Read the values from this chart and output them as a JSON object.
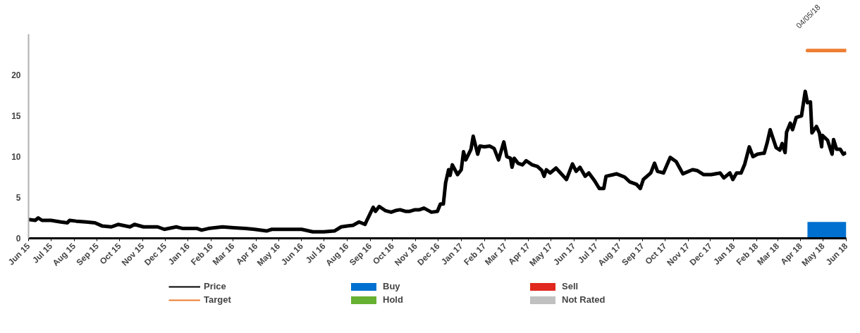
{
  "chart_data": {
    "type": "line",
    "xlim": [
      "2015-06-01",
      "2018-06-01"
    ],
    "xticks": [
      {
        "value": "2015-06-01",
        "label": "Jun 15"
      },
      {
        "value": "2015-07-01",
        "label": "Jul 15"
      },
      {
        "value": "2015-08-01",
        "label": "Aug 15"
      },
      {
        "value": "2015-09-01",
        "label": "Sep 15"
      },
      {
        "value": "2015-10-01",
        "label": "Oct 15"
      },
      {
        "value": "2015-11-01",
        "label": "Nov 15"
      },
      {
        "value": "2015-12-01",
        "label": "Dec 15"
      },
      {
        "value": "2016-01-01",
        "label": "Jan 16"
      },
      {
        "value": "2016-02-01",
        "label": "Feb 16"
      },
      {
        "value": "2016-03-01",
        "label": "Mar 16"
      },
      {
        "value": "2016-04-01",
        "label": "Apr 16"
      },
      {
        "value": "2016-05-01",
        "label": "May 16"
      },
      {
        "value": "2016-06-01",
        "label": "Jun 16"
      },
      {
        "value": "2016-07-01",
        "label": "Jul 16"
      },
      {
        "value": "2016-08-01",
        "label": "Aug 16"
      },
      {
        "value": "2016-09-01",
        "label": "Sep 16"
      },
      {
        "value": "2016-10-01",
        "label": "Oct 16"
      },
      {
        "value": "2016-11-01",
        "label": "Nov 16"
      },
      {
        "value": "2016-12-01",
        "label": "Dec 16"
      },
      {
        "value": "2017-01-01",
        "label": "Jan 17"
      },
      {
        "value": "2017-02-01",
        "label": "Feb 17"
      },
      {
        "value": "2017-03-01",
        "label": "Mar 17"
      },
      {
        "value": "2017-04-01",
        "label": "Apr 17"
      },
      {
        "value": "2017-05-01",
        "label": "May 17"
      },
      {
        "value": "2017-06-01",
        "label": "Jun 17"
      },
      {
        "value": "2017-07-01",
        "label": "Jul 17"
      },
      {
        "value": "2017-08-01",
        "label": "Aug 17"
      },
      {
        "value": "2017-09-01",
        "label": "Sep 17"
      },
      {
        "value": "2017-10-01",
        "label": "Oct 17"
      },
      {
        "value": "2017-11-01",
        "label": "Nov 17"
      },
      {
        "value": "2017-12-01",
        "label": "Dec 17"
      },
      {
        "value": "2018-01-01",
        "label": "Jan 18"
      },
      {
        "value": "2018-02-01",
        "label": "Feb 18"
      },
      {
        "value": "2018-03-01",
        "label": "Mar 18"
      },
      {
        "value": "2018-04-01",
        "label": "Apr 18"
      },
      {
        "value": "2018-05-01",
        "label": "May 18"
      },
      {
        "value": "2018-06-01",
        "label": "Jun 18"
      }
    ],
    "ylim": [
      0,
      25
    ],
    "yticks": [
      0,
      5,
      10,
      15,
      20
    ],
    "grid": false,
    "legend": "bottom",
    "annotations": [
      "04/05/18"
    ],
    "series": [
      {
        "name": "Price",
        "color": "#000000",
        "x": [
          "2015-06-01",
          "2015-06-10",
          "2015-06-14",
          "2015-06-19",
          "2015-07-01",
          "2015-07-14",
          "2015-07-23",
          "2015-07-26",
          "2015-08-04",
          "2015-08-17",
          "2015-08-29",
          "2015-09-08",
          "2015-09-20",
          "2015-09-29",
          "2015-10-15",
          "2015-10-21",
          "2015-11-02",
          "2015-11-21",
          "2015-11-30",
          "2015-12-16",
          "2015-12-25",
          "2016-01-13",
          "2016-01-19",
          "2016-01-28",
          "2016-02-16",
          "2016-03-02",
          "2016-03-18",
          "2016-03-30",
          "2016-04-15",
          "2016-04-22",
          "2016-05-01",
          "2016-06-01",
          "2016-06-16",
          "2016-07-01",
          "2016-07-15",
          "2016-07-24",
          "2016-08-01",
          "2016-08-09",
          "2016-08-17",
          "2016-08-25",
          "2016-08-28",
          "2016-09-05",
          "2016-09-08",
          "2016-09-13",
          "2016-09-21",
          "2016-09-29",
          "2016-10-05",
          "2016-10-11",
          "2016-10-18",
          "2016-10-24",
          "2016-10-31",
          "2016-11-06",
          "2016-11-12",
          "2016-11-22",
          "2016-11-30",
          "2016-12-04",
          "2016-12-08",
          "2016-12-11",
          "2016-12-15",
          "2016-12-17",
          "2016-12-20",
          "2016-12-27",
          "2017-01-01",
          "2017-01-04",
          "2017-01-07",
          "2017-01-14",
          "2017-01-17",
          "2017-01-23",
          "2017-01-26",
          "2017-02-01",
          "2017-02-08",
          "2017-02-14",
          "2017-02-20",
          "2017-02-27",
          "2017-03-03",
          "2017-03-08",
          "2017-03-10",
          "2017-03-13",
          "2017-03-18",
          "2017-03-24",
          "2017-03-29",
          "2017-04-06",
          "2017-04-13",
          "2017-04-19",
          "2017-04-22",
          "2017-04-25",
          "2017-04-30",
          "2017-05-08",
          "2017-05-22",
          "2017-05-30",
          "2017-06-04",
          "2017-06-09",
          "2017-06-16",
          "2017-06-21",
          "2017-06-29",
          "2017-07-05",
          "2017-07-11",
          "2017-07-14",
          "2017-07-24",
          "2017-07-28",
          "2017-08-08",
          "2017-08-15",
          "2017-08-24",
          "2017-08-29",
          "2017-09-02",
          "2017-09-12",
          "2017-09-17",
          "2017-09-21",
          "2017-09-29",
          "2017-10-08",
          "2017-10-16",
          "2017-10-25",
          "2017-11-07",
          "2017-11-13",
          "2017-11-22",
          "2017-12-02",
          "2017-12-14",
          "2017-12-19",
          "2017-12-27",
          "2017-12-31",
          "2018-01-05",
          "2018-01-11",
          "2018-01-16",
          "2018-01-22",
          "2018-01-27",
          "2018-02-02",
          "2018-02-08",
          "2018-02-11",
          "2018-02-15",
          "2018-02-19",
          "2018-02-27",
          "2018-03-04",
          "2018-03-07",
          "2018-03-11",
          "2018-03-13",
          "2018-03-18",
          "2018-03-21",
          "2018-03-26",
          "2018-04-02",
          "2018-04-07",
          "2018-04-10",
          "2018-04-14",
          "2018-04-16",
          "2018-04-22",
          "2018-04-26",
          "2018-04-29",
          "2018-04-30",
          "2018-05-07",
          "2018-05-13",
          "2018-05-15",
          "2018-05-19",
          "2018-05-24",
          "2018-05-28",
          "2018-06-01"
        ],
        "values": [
          2.3,
          2.2,
          2.5,
          2.2,
          2.2,
          2.0,
          1.9,
          2.2,
          2.1,
          2.0,
          1.9,
          1.5,
          1.4,
          1.7,
          1.4,
          1.7,
          1.4,
          1.4,
          1.1,
          1.4,
          1.2,
          1.2,
          1.0,
          1.2,
          1.4,
          1.3,
          1.2,
          1.1,
          0.9,
          1.1,
          1.1,
          1.1,
          0.8,
          0.8,
          0.9,
          1.4,
          1.5,
          1.6,
          2.0,
          1.7,
          2.3,
          3.8,
          3.3,
          3.9,
          3.4,
          3.2,
          3.4,
          3.5,
          3.3,
          3.3,
          3.5,
          3.5,
          3.7,
          3.2,
          3.3,
          4.2,
          4.2,
          6.8,
          8.4,
          7.7,
          9.0,
          7.8,
          8.4,
          10.6,
          9.6,
          10.9,
          12.5,
          10.3,
          11.3,
          11.2,
          11.3,
          11.0,
          9.6,
          11.8,
          10.0,
          9.8,
          8.7,
          9.8,
          9.2,
          9.0,
          9.5,
          9.0,
          8.8,
          8.3,
          7.6,
          8.4,
          8.0,
          8.6,
          7.2,
          9.1,
          8.2,
          8.7,
          7.6,
          8.0,
          7.0,
          6.1,
          6.1,
          7.6,
          7.8,
          7.9,
          7.5,
          6.9,
          6.6,
          6.1,
          7.2,
          8.0,
          9.2,
          8.2,
          8.0,
          9.9,
          9.4,
          7.9,
          8.4,
          8.3,
          7.8,
          7.8,
          8.0,
          7.4,
          8.0,
          7.2,
          8.0,
          8.0,
          9.1,
          11.2,
          10.0,
          10.3,
          10.4,
          10.4,
          11.7,
          13.3,
          11.1,
          10.8,
          11.6,
          10.5,
          13.0,
          14.1,
          13.3,
          14.8,
          15.0,
          18.0,
          16.6,
          16.7,
          12.9,
          13.7,
          12.9,
          11.2,
          12.6,
          12.0,
          10.3,
          12.1,
          10.9,
          10.9,
          10.3,
          10.5
        ]
      },
      {
        "name": "Target",
        "type": "step",
        "color": "#ed7d31",
        "x": [
          "2018-04-10",
          "2018-06-01"
        ],
        "values": [
          23,
          23
        ]
      },
      {
        "name": "Buy",
        "type": "area",
        "color": "#0070d0",
        "x": [
          "2018-04-10",
          "2018-06-01"
        ],
        "values": [
          2,
          2
        ]
      },
      {
        "name": "Hold",
        "type": "area",
        "color": "#66b032"
      },
      {
        "name": "Sell",
        "type": "area",
        "color": "#e0281e"
      },
      {
        "name": "Not Rated",
        "type": "area",
        "color": "#c0c0c0"
      }
    ]
  }
}
